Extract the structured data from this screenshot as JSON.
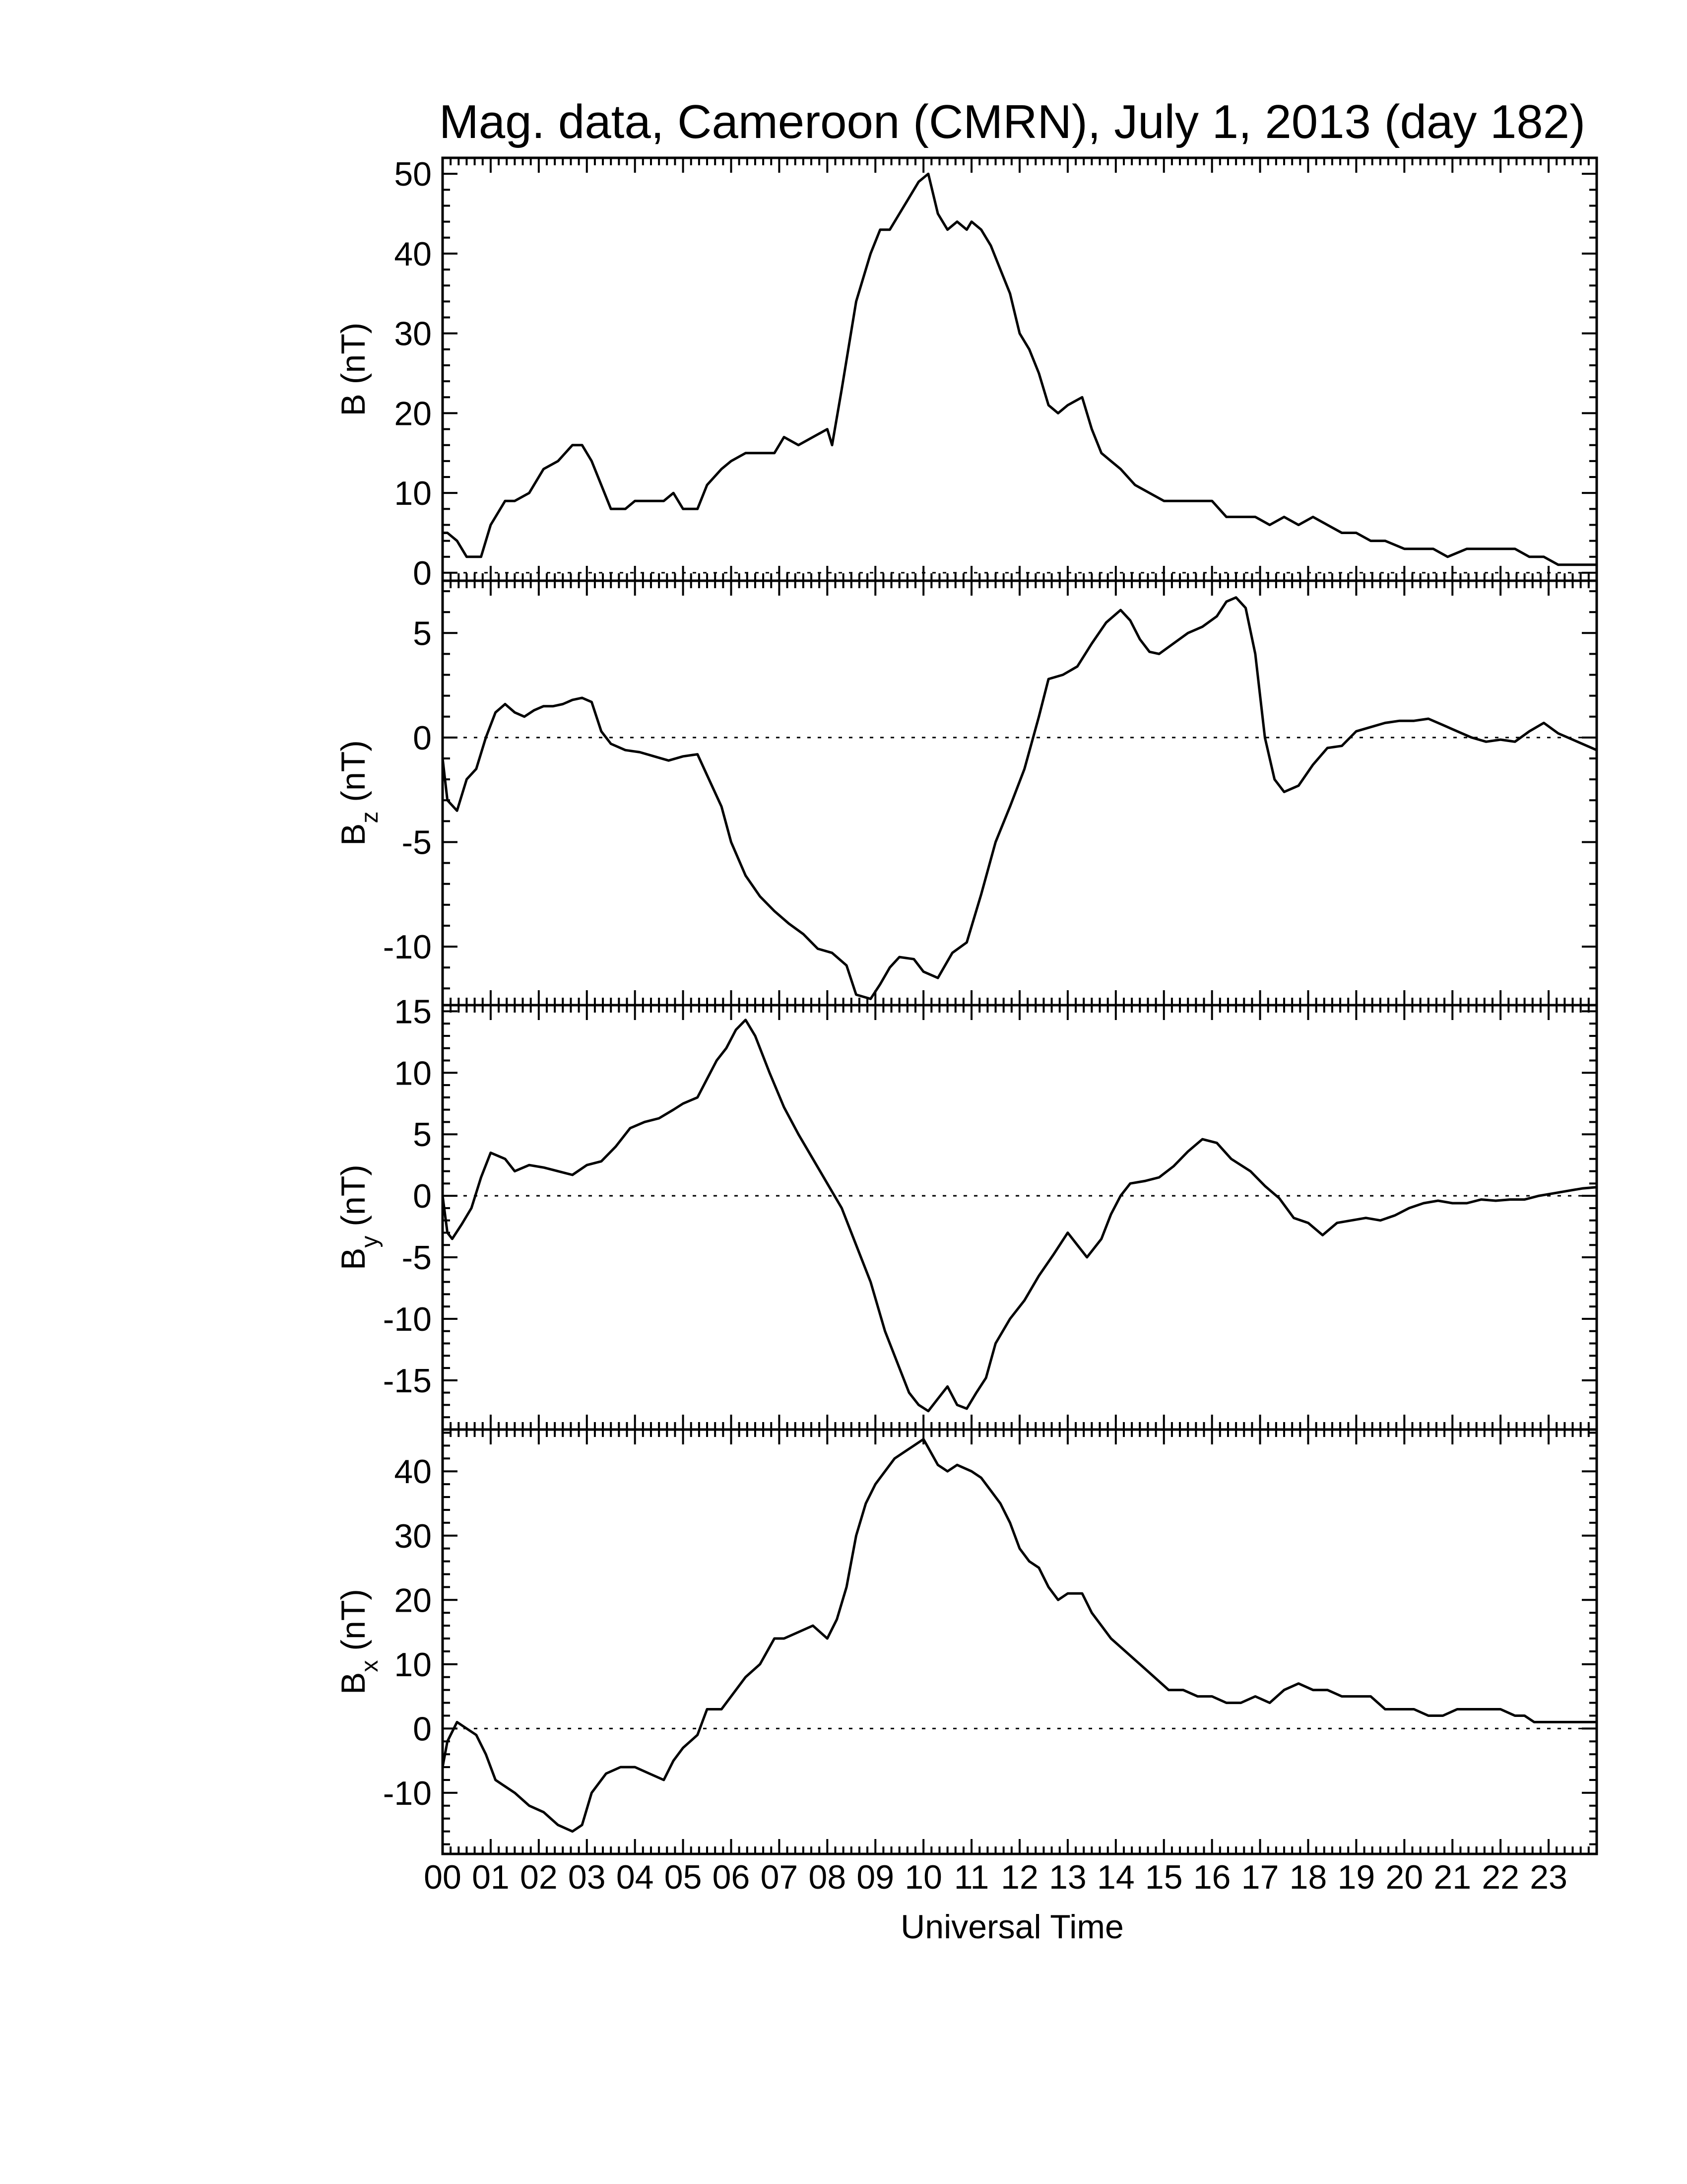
{
  "chart_data": {
    "type": "line",
    "title": "Mag. data, Cameroon (CMRN), July 1, 2013 (day 182)",
    "xlabel": "Universal Time",
    "x_tick_labels": [
      "00",
      "01",
      "02",
      "03",
      "04",
      "05",
      "06",
      "07",
      "08",
      "09",
      "10",
      "11",
      "12",
      "13",
      "14",
      "15",
      "16",
      "17",
      "18",
      "19",
      "20",
      "21",
      "22",
      "23"
    ],
    "x_range_hours": [
      0,
      24
    ],
    "line_color": "#000000",
    "panels": [
      {
        "id": "b",
        "ylabel_main": "B (nT)",
        "ylabel_sub": "",
        "ylim": [
          -1,
          52
        ],
        "y_ticks": [
          0,
          10,
          20,
          30,
          40,
          50
        ],
        "y_tick_labels": [
          "0",
          "10",
          "20",
          "30",
          "40",
          "50"
        ],
        "zero_line": true,
        "hours": [
          0,
          0.1,
          0.3,
          0.5,
          0.8,
          1.0,
          1.3,
          1.5,
          1.8,
          2.1,
          2.4,
          2.7,
          2.9,
          3.1,
          3.3,
          3.5,
          3.8,
          4.0,
          4.3,
          4.6,
          4.8,
          5.0,
          5.3,
          5.5,
          5.8,
          6.0,
          6.3,
          6.6,
          6.9,
          7.1,
          7.4,
          7.7,
          8.0,
          8.1,
          8.3,
          8.6,
          8.9,
          9.1,
          9.3,
          9.5,
          9.7,
          9.9,
          10.1,
          10.3,
          10.5,
          10.7,
          10.9,
          11.0,
          11.2,
          11.4,
          11.6,
          11.8,
          12.0,
          12.2,
          12.4,
          12.6,
          12.8,
          13.0,
          13.3,
          13.5,
          13.7,
          13.9,
          14.1,
          14.4,
          14.7,
          15.0,
          15.3,
          15.6,
          16.0,
          16.3,
          16.6,
          16.9,
          17.2,
          17.5,
          17.8,
          18.1,
          18.4,
          18.7,
          19.0,
          19.3,
          19.6,
          20.0,
          20.3,
          20.6,
          20.9,
          21.3,
          21.6,
          21.9,
          22.3,
          22.6,
          22.9,
          23.2,
          23.5,
          23.8,
          24.0
        ],
        "values": [
          5,
          5,
          4,
          2,
          2,
          6,
          9,
          9,
          10,
          13,
          14,
          16,
          16,
          14,
          11,
          8,
          8,
          9,
          9,
          9,
          10,
          8,
          8,
          11,
          13,
          14,
          15,
          15,
          15,
          17,
          16,
          17,
          18,
          16,
          23,
          34,
          40,
          43,
          43,
          45,
          47,
          49,
          50,
          45,
          43,
          44,
          43,
          44,
          43,
          41,
          38,
          35,
          30,
          28,
          25,
          21,
          20,
          21,
          22,
          18,
          15,
          14,
          13,
          11,
          10,
          9,
          9,
          9,
          9,
          7,
          7,
          7,
          6,
          7,
          6,
          7,
          6,
          5,
          5,
          4,
          4,
          3,
          3,
          3,
          2,
          3,
          3,
          3,
          3,
          2,
          2,
          1,
          1,
          1,
          1
        ],
        "series": [
          {
            "name": "B"
          }
        ]
      },
      {
        "id": "bz",
        "ylabel_main": "B",
        "ylabel_sub": "z",
        "ylabel_unit": "(nT)",
        "ylim": [
          -12.8,
          7.5
        ],
        "y_ticks": [
          -10,
          -5,
          0,
          5
        ],
        "y_tick_labels": [
          "-10",
          "-5",
          "0",
          "5"
        ],
        "zero_line": true,
        "hours": [
          0,
          0.1,
          0.3,
          0.5,
          0.7,
          0.9,
          1.1,
          1.3,
          1.5,
          1.7,
          1.9,
          2.1,
          2.3,
          2.5,
          2.7,
          2.9,
          3.1,
          3.3,
          3.5,
          3.8,
          4.1,
          4.4,
          4.7,
          5.0,
          5.3,
          5.5,
          5.8,
          6.0,
          6.3,
          6.6,
          6.9,
          7.2,
          7.5,
          7.8,
          8.1,
          8.4,
          8.6,
          8.9,
          9.1,
          9.3,
          9.5,
          9.8,
          10.0,
          10.3,
          10.6,
          10.9,
          11.2,
          11.5,
          11.8,
          12.1,
          12.4,
          12.6,
          12.9,
          13.2,
          13.5,
          13.8,
          14.1,
          14.3,
          14.5,
          14.7,
          14.9,
          15.2,
          15.5,
          15.8,
          16.1,
          16.3,
          16.5,
          16.7,
          16.9,
          17.1,
          17.3,
          17.5,
          17.8,
          18.1,
          18.4,
          18.7,
          19.0,
          19.3,
          19.6,
          19.9,
          20.2,
          20.5,
          20.8,
          21.1,
          21.4,
          21.7,
          22.0,
          22.3,
          22.6,
          22.9,
          23.2,
          23.5,
          24.0
        ],
        "values": [
          -1,
          -3,
          -3.5,
          -2,
          -1.5,
          0,
          1.2,
          1.6,
          1.2,
          1.0,
          1.3,
          1.5,
          1.5,
          1.6,
          1.8,
          1.9,
          1.7,
          0.3,
          -0.3,
          -0.6,
          -0.7,
          -0.9,
          -1.1,
          -0.9,
          -0.8,
          -1.8,
          -3.3,
          -5,
          -6.6,
          -7.6,
          -8.3,
          -8.9,
          -9.4,
          -10.1,
          -10.3,
          -10.9,
          -12.3,
          -12.5,
          -11.8,
          -11,
          -10.5,
          -10.6,
          -11.2,
          -11.5,
          -10.3,
          -9.8,
          -7.5,
          -5,
          -3.3,
          -1.5,
          1,
          2.8,
          3,
          3.4,
          4.5,
          5.5,
          6.1,
          5.6,
          4.7,
          4.1,
          4.0,
          4.5,
          5.0,
          5.3,
          5.8,
          6.5,
          6.7,
          6.2,
          4.0,
          0,
          -2,
          -2.6,
          -2.3,
          -1.3,
          -0.5,
          -0.4,
          0.3,
          0.5,
          0.7,
          0.8,
          0.8,
          0.9,
          0.6,
          0.3,
          0,
          -0.2,
          -0.1,
          -0.2,
          0.3,
          0.7,
          0.2,
          -0.1,
          -0.6
        ],
        "series": [
          {
            "name": "Bz"
          }
        ]
      },
      {
        "id": "by",
        "ylabel_main": "B",
        "ylabel_sub": "y",
        "ylabel_unit": "(nT)",
        "ylim": [
          -19,
          15.5
        ],
        "y_ticks": [
          -15,
          -10,
          -5,
          0,
          5,
          10,
          15
        ],
        "y_tick_labels": [
          "-15",
          "-10",
          "-5",
          "0",
          "5",
          "10",
          "15"
        ],
        "zero_line": true,
        "hours": [
          0,
          0.1,
          0.2,
          0.4,
          0.6,
          0.8,
          1.0,
          1.3,
          1.5,
          1.8,
          2.1,
          2.4,
          2.7,
          3.0,
          3.3,
          3.6,
          3.9,
          4.2,
          4.5,
          4.8,
          5.0,
          5.3,
          5.5,
          5.7,
          5.9,
          6.1,
          6.3,
          6.5,
          6.8,
          7.1,
          7.4,
          7.7,
          8.0,
          8.3,
          8.6,
          8.9,
          9.2,
          9.5,
          9.7,
          9.9,
          10.1,
          10.3,
          10.5,
          10.7,
          10.9,
          11.1,
          11.3,
          11.5,
          11.8,
          12.1,
          12.4,
          12.7,
          13.0,
          13.2,
          13.4,
          13.7,
          13.9,
          14.1,
          14.3,
          14.6,
          14.9,
          15.2,
          15.5,
          15.8,
          16.1,
          16.4,
          16.8,
          17.1,
          17.4,
          17.7,
          18.0,
          18.3,
          18.6,
          18.9,
          19.2,
          19.5,
          19.8,
          20.1,
          20.4,
          20.7,
          21.0,
          21.3,
          21.6,
          21.9,
          22.2,
          22.5,
          22.8,
          23.1,
          23.4,
          23.7,
          24.0
        ],
        "values": [
          0,
          -3,
          -3.5,
          -2.3,
          -1,
          1.5,
          3.5,
          3,
          2,
          2.5,
          2.3,
          2.0,
          1.7,
          2.5,
          2.8,
          4,
          5.5,
          6,
          6.3,
          7,
          7.5,
          8,
          9.5,
          11,
          12,
          13.5,
          14.3,
          13,
          10,
          7.2,
          5,
          3,
          1,
          -1,
          -4,
          -7,
          -11,
          -14,
          -16,
          -17,
          -17.5,
          -16.5,
          -15.5,
          -17,
          -17.3,
          -16,
          -14.8,
          -12,
          -10,
          -8.5,
          -6.5,
          -4.8,
          -3,
          -4,
          -5,
          -3.5,
          -1.5,
          0,
          1,
          1.2,
          1.5,
          2.4,
          3.6,
          4.6,
          4.3,
          3.0,
          2.0,
          0.8,
          -0.2,
          -1.8,
          -2.2,
          -3.2,
          -2.2,
          -2.0,
          -1.8,
          -2.0,
          -1.6,
          -1.0,
          -0.6,
          -0.4,
          -0.6,
          -0.6,
          -0.3,
          -0.4,
          -0.3,
          -0.3,
          0,
          0.2,
          0.4,
          0.6,
          0.7
        ],
        "series": [
          {
            "name": "By"
          }
        ]
      },
      {
        "id": "bx",
        "ylabel_main": "B",
        "ylabel_sub": "x",
        "ylabel_unit": "(nT)",
        "ylim": [
          -19.5,
          46.5
        ],
        "y_ticks": [
          -10,
          0,
          10,
          20,
          30,
          40
        ],
        "y_tick_labels": [
          "-10",
          "0",
          "10",
          "20",
          "30",
          "40"
        ],
        "zero_line": true,
        "hours": [
          0,
          0.1,
          0.3,
          0.5,
          0.7,
          0.9,
          1.1,
          1.3,
          1.5,
          1.8,
          2.1,
          2.4,
          2.7,
          2.9,
          3.1,
          3.4,
          3.7,
          4.0,
          4.3,
          4.6,
          4.8,
          5.0,
          5.3,
          5.5,
          5.8,
          6.0,
          6.3,
          6.6,
          6.9,
          7.1,
          7.4,
          7.7,
          8.0,
          8.2,
          8.4,
          8.6,
          8.8,
          9.0,
          9.2,
          9.4,
          9.6,
          9.8,
          10.0,
          10.3,
          10.5,
          10.7,
          11.0,
          11.2,
          11.4,
          11.6,
          11.8,
          12.0,
          12.2,
          12.4,
          12.6,
          12.8,
          13.0,
          13.3,
          13.5,
          13.7,
          13.9,
          14.2,
          14.5,
          14.8,
          15.1,
          15.4,
          15.7,
          16.0,
          16.3,
          16.6,
          16.9,
          17.2,
          17.5,
          17.8,
          18.1,
          18.4,
          18.7,
          19.0,
          19.3,
          19.6,
          19.9,
          20.2,
          20.5,
          20.8,
          21.1,
          21.4,
          21.7,
          22.0,
          22.3,
          22.5,
          22.7,
          23.0,
          23.3,
          23.6,
          24.0
        ],
        "values": [
          -6,
          -2,
          1,
          0,
          -1,
          -4,
          -8,
          -9,
          -10,
          -12,
          -13,
          -15,
          -16,
          -15,
          -10,
          -7,
          -6,
          -6,
          -7,
          -8,
          -5,
          -3,
          -1,
          3,
          3,
          5,
          8,
          10,
          14,
          14,
          15,
          16,
          14,
          17,
          22,
          30,
          35,
          38,
          40,
          42,
          43,
          44,
          45,
          41,
          40,
          41,
          40,
          39,
          37,
          35,
          32,
          28,
          26,
          25,
          22,
          20,
          21,
          21,
          18,
          16,
          14,
          12,
          10,
          8,
          6,
          6,
          5,
          5,
          4,
          4,
          5,
          4,
          6,
          7,
          6,
          6,
          5,
          5,
          5,
          3,
          3,
          3,
          2,
          2,
          3,
          3,
          3,
          3,
          2,
          2,
          1,
          1,
          1,
          1,
          1
        ],
        "series": [
          {
            "name": "Bx"
          }
        ]
      }
    ]
  }
}
